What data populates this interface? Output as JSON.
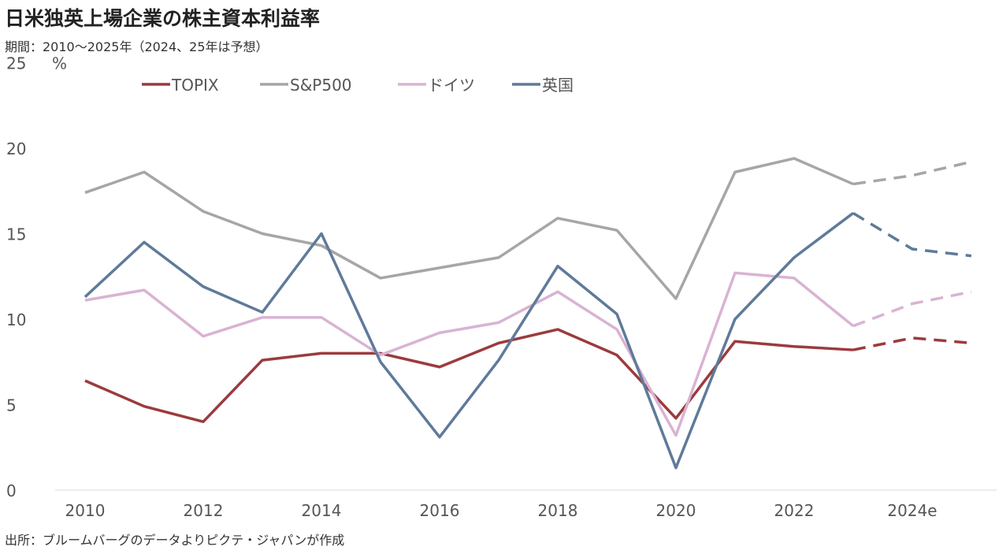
{
  "title": "日米独英上場企業の株主資本利益率",
  "subtitle": "期間：2010～2025年（2024、25年は予想）",
  "source": "出所：ブルームバーグのデータよりピクテ・ジャパンが作成",
  "chart_data": {
    "type": "line",
    "title": "日米独英上場企業の株主資本利益率",
    "ylabel": "%",
    "ylim": [
      0,
      25
    ],
    "yticks": [
      "0",
      "5",
      "10",
      "15",
      "20",
      "25"
    ],
    "x": [
      2010,
      2011,
      2012,
      2013,
      2014,
      2015,
      2016,
      2017,
      2018,
      2019,
      2020,
      2021,
      2022,
      2023,
      2024,
      2025
    ],
    "xticks": [
      "2010",
      "2012",
      "2014",
      "2016",
      "2018",
      "2020",
      "2022",
      "2024e"
    ],
    "forecast_from": 2023,
    "legend_position": "top",
    "series": [
      {
        "name": "TOPIX",
        "color": "#9b3b3e",
        "values": [
          6.4,
          4.9,
          4.0,
          7.6,
          8.0,
          8.0,
          7.2,
          8.6,
          9.4,
          7.9,
          4.2,
          8.7,
          8.4,
          8.2,
          8.9,
          8.6
        ]
      },
      {
        "name": "S&P500",
        "color": "#a6a6a6",
        "values": [
          17.4,
          18.6,
          16.3,
          15.0,
          14.3,
          12.4,
          13.0,
          13.6,
          15.9,
          15.2,
          11.2,
          18.6,
          19.4,
          17.9,
          18.4,
          19.2
        ]
      },
      {
        "name": "ドイツ",
        "color": "#d9b3d3",
        "values": [
          11.1,
          11.7,
          9.0,
          10.1,
          10.1,
          7.9,
          9.2,
          9.8,
          11.6,
          9.4,
          3.2,
          12.7,
          12.4,
          9.6,
          10.9,
          11.6
        ]
      },
      {
        "name": "英国",
        "color": "#5f7a9a",
        "values": [
          11.3,
          14.5,
          11.9,
          10.4,
          15.0,
          7.5,
          3.1,
          7.6,
          13.1,
          10.3,
          1.3,
          10.0,
          13.6,
          16.2,
          14.1,
          13.7
        ]
      }
    ]
  }
}
